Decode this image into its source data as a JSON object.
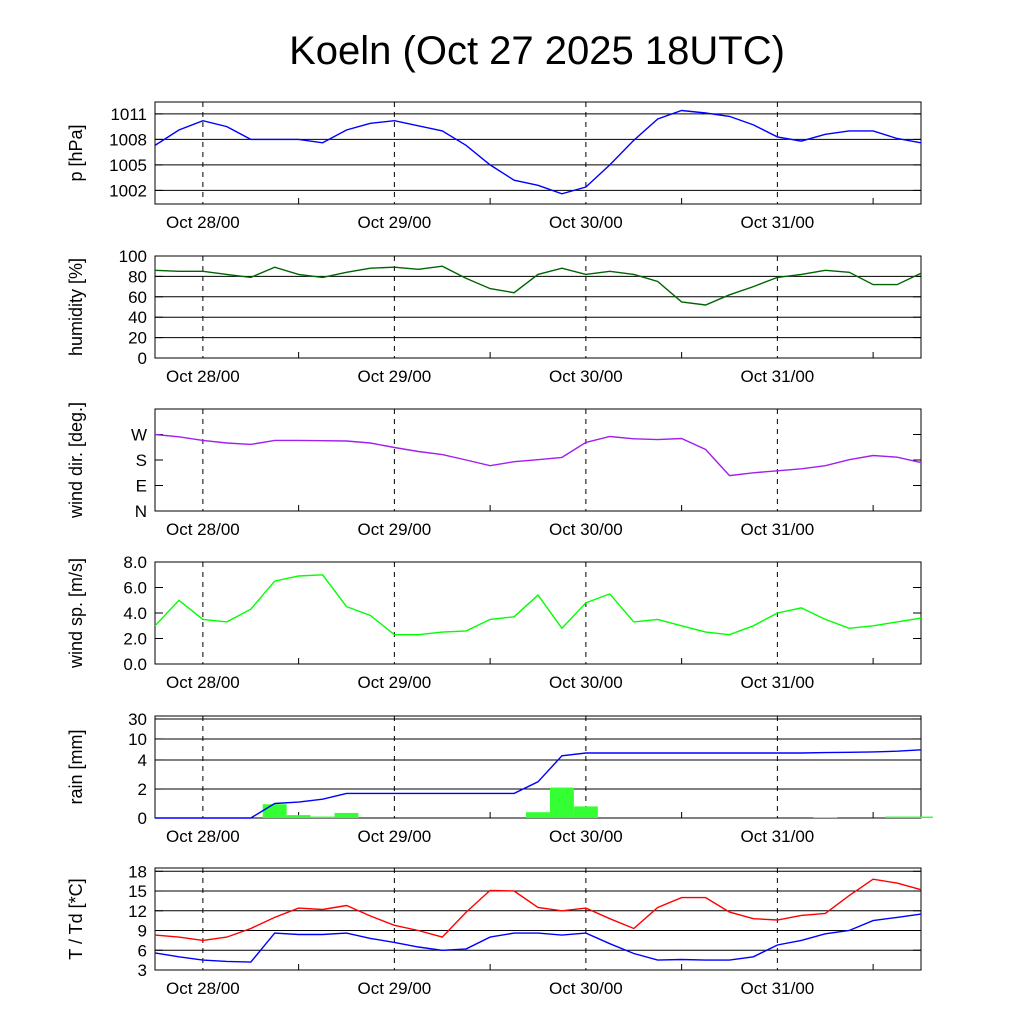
{
  "chart_data": {
    "type": "line",
    "title": "Koeln (Oct 27 2025 18UTC)",
    "x_unit": "hours since Oct 27 18UTC",
    "xlim": [
      0,
      96
    ],
    "x_ticks": [
      {
        "h": 6,
        "label": "Oct 28/00"
      },
      {
        "h": 30,
        "label": "Oct 29/00"
      },
      {
        "h": 54,
        "label": "Oct 30/00"
      },
      {
        "h": 78,
        "label": "Oct 31/00"
      }
    ],
    "x": [
      0,
      3,
      6,
      9,
      12,
      15,
      18,
      21,
      24,
      27,
      30,
      33,
      36,
      39,
      42,
      45,
      48,
      51,
      54,
      57,
      60,
      63,
      66,
      69,
      72,
      75,
      78,
      81,
      84,
      87,
      90,
      93,
      96
    ],
    "panels": [
      {
        "id": "pressure",
        "ylabel": "p [hPa]",
        "ylim": [
          1000.4,
          1012.4
        ],
        "grid": [
          1011,
          1008,
          1005,
          1002
        ],
        "tick_labels": [
          "1011",
          "1008",
          "1005",
          "1002"
        ],
        "series": [
          {
            "name": "pressure",
            "color": "#0000ff",
            "values": [
              1007.3,
              1009.1,
              1010.2,
              1009.5,
              1008.0,
              1008.0,
              1008.0,
              1007.6,
              1009.1,
              1009.9,
              1010.2,
              1009.6,
              1009.0,
              1007.3,
              1005.0,
              1003.2,
              1002.6,
              1001.6,
              1002.4,
              1005.0,
              1007.9,
              1010.4,
              1011.4,
              1011.1,
              1010.7,
              1009.7,
              1008.3,
              1007.8,
              1008.6,
              1009.0,
              1009.0,
              1008.1,
              1007.6
            ]
          }
        ]
      },
      {
        "id": "humidity",
        "ylabel": "humidity [%]",
        "ylim": [
          0,
          100
        ],
        "grid": [
          20,
          40,
          60,
          80
        ],
        "ticks": [
          0,
          20,
          40,
          60,
          80,
          100
        ],
        "tick_labels": [
          "0",
          "20",
          "40",
          "60",
          "80",
          "100"
        ],
        "series": [
          {
            "name": "humidity",
            "color": "#006400",
            "values": [
              86,
              85,
              85,
              82,
              79,
              89,
              82,
              79,
              84,
              88,
              89,
              87,
              90,
              78,
              68,
              64,
              82,
              88,
              82,
              85,
              82,
              75,
              55,
              52,
              62,
              70,
              79,
              82,
              86,
              84,
              72,
              72,
              83
            ]
          }
        ]
      },
      {
        "id": "wind_dir",
        "ylabel": "wind dir. [deg.]",
        "ylim": [
          0,
          360
        ],
        "grid": [],
        "ticks": [
          0,
          90,
          180,
          270
        ],
        "tick_labels": [
          "N",
          "E",
          "S",
          "W"
        ],
        "series": [
          {
            "name": "wind direction",
            "color": "#a020f0",
            "values": [
              270,
              262,
              249,
              240,
              235,
              249,
              249,
              248,
              247,
              240,
              224,
              210,
              199,
              180,
              160,
              174,
              181,
              189,
              242,
              263,
              255,
              252,
              256,
              217,
              125,
              135,
              142,
              149,
              160,
              181,
              196,
              190,
              171
            ]
          }
        ]
      },
      {
        "id": "wind_speed",
        "ylabel": "wind sp. [m/s]",
        "ylim": [
          0,
          8
        ],
        "grid": [],
        "ticks": [
          0,
          2,
          4,
          6,
          8
        ],
        "tick_labels": [
          "0.0",
          "2.0",
          "4.0",
          "6.0",
          "8.0"
        ],
        "series": [
          {
            "name": "wind speed",
            "color": "#00ff00",
            "values": [
              3.0,
              5.0,
              3.5,
              3.3,
              4.3,
              6.5,
              6.9,
              7.0,
              4.5,
              3.8,
              2.3,
              2.3,
              2.5,
              2.6,
              3.5,
              3.7,
              5.4,
              2.8,
              4.8,
              5.5,
              3.3,
              3.5,
              3.0,
              2.5,
              2.3,
              3.0,
              4.0,
              4.4,
              3.5,
              2.8,
              3.0,
              3.3,
              3.6
            ]
          }
        ]
      },
      {
        "id": "rain",
        "ylabel": "rain [mm]",
        "ylim": [
          0,
          30
        ],
        "grid": [
          2,
          4,
          10,
          30
        ],
        "ticks": [
          0,
          2,
          4,
          10,
          30
        ],
        "tick_labels": [
          "0",
          "2",
          "4",
          "10",
          "30"
        ],
        "series": [
          {
            "name": "accumulated rain",
            "color": "#0000ff",
            "values": [
              0,
              0,
              0,
              0,
              0,
              1.0,
              1.1,
              1.3,
              1.7,
              1.7,
              1.7,
              1.7,
              1.7,
              1.7,
              1.7,
              1.7,
              2.5,
              5.2,
              6.0,
              6.0,
              6.0,
              6.0,
              6.0,
              6.0,
              6.0,
              6.0,
              6.0,
              6.0,
              6.1,
              6.2,
              6.3,
              6.5,
              6.9
            ]
          }
        ],
        "bars": {
          "name": "3h rain",
          "color": "#33ff33",
          "width_hours": 3,
          "start": [
            13.5,
            16.5,
            19.5,
            22.5,
            46.5,
            49.5,
            52.5,
            82.5,
            91.5,
            94.5
          ],
          "values": [
            0.95,
            0.2,
            0.1,
            0.35,
            0.4,
            2.1,
            0.8,
            0.05,
            0.1,
            0.1
          ]
        }
      },
      {
        "id": "temperature",
        "ylabel": "T / Td [*C]",
        "ylim": [
          3,
          18.5
        ],
        "grid": [
          6,
          9,
          12,
          15,
          18
        ],
        "ticks": [
          3,
          6,
          9,
          12,
          15,
          18
        ],
        "tick_labels": [
          "3",
          "6",
          "9",
          "12",
          "15",
          "18"
        ],
        "series": [
          {
            "name": "T",
            "color": "#ff0000",
            "values": [
              8.3,
              8.0,
              7.5,
              8.0,
              9.3,
              11.0,
              12.4,
              12.2,
              12.8,
              11.2,
              9.8,
              9.0,
              8.0,
              11.8,
              15.1,
              15.0,
              12.5,
              12.0,
              12.4,
              10.8,
              9.3,
              12.5,
              14.0,
              14.0,
              11.8,
              10.8,
              10.6,
              11.3,
              11.6,
              14.3,
              16.8,
              16.2,
              15.2
            ]
          },
          {
            "name": "Td",
            "color": "#0000ff",
            "values": [
              5.6,
              5.0,
              4.5,
              4.3,
              4.2,
              8.6,
              8.4,
              8.4,
              8.6,
              7.8,
              7.2,
              6.5,
              6.0,
              6.2,
              8.0,
              8.6,
              8.6,
              8.3,
              8.6,
              7.0,
              5.5,
              4.5,
              4.6,
              4.5,
              4.5,
              5.0,
              6.8,
              7.5,
              8.5,
              9.0,
              10.5,
              11.0,
              11.5
            ]
          }
        ]
      }
    ]
  }
}
